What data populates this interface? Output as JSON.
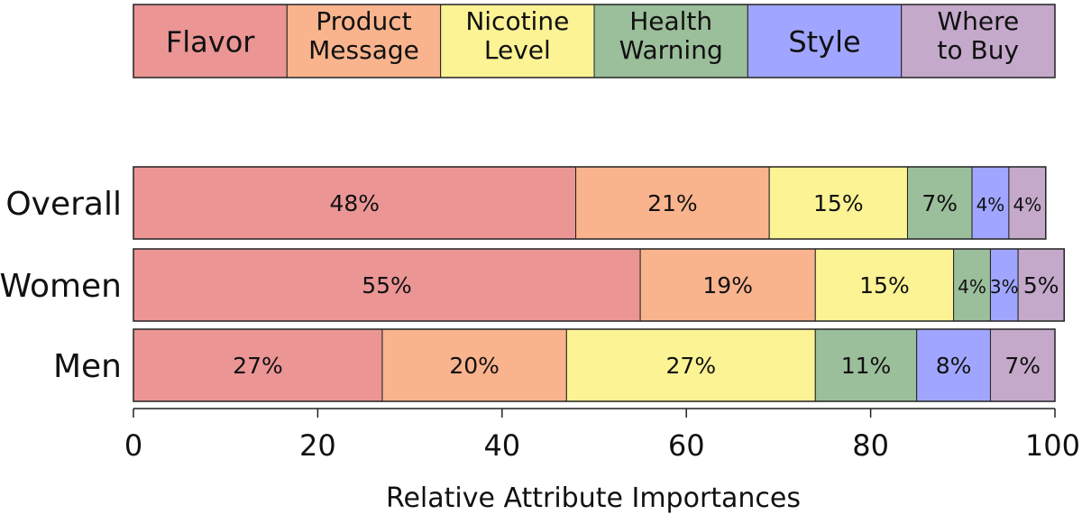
{
  "chart_data": {
    "type": "bar",
    "orientation": "horizontal",
    "stacked": true,
    "xlabel": "Relative Attribute Importances",
    "xlim": [
      0,
      100
    ],
    "xticks": [
      0,
      20,
      40,
      60,
      80,
      100
    ],
    "categories": [
      "Overall",
      "Women",
      "Men"
    ],
    "legend_position": "top",
    "series": [
      {
        "name": "Flavor",
        "legend_lines": [
          "Flavor"
        ],
        "color": "#EB9595",
        "values": [
          48,
          55,
          27
        ],
        "labels": [
          "48%",
          "55%",
          "27%"
        ]
      },
      {
        "name": "Product Message",
        "legend_lines": [
          "Product",
          "Message"
        ],
        "color": "#F9B48E",
        "values": [
          21,
          19,
          20
        ],
        "labels": [
          "21%",
          "19%",
          "20%"
        ]
      },
      {
        "name": "Nicotine Level",
        "legend_lines": [
          "Nicotine",
          "Level"
        ],
        "color": "#FBF394",
        "values": [
          15,
          15,
          27
        ],
        "labels": [
          "15%",
          "15%",
          "27%"
        ]
      },
      {
        "name": "Health Warning",
        "legend_lines": [
          "Health",
          "Warning"
        ],
        "color": "#9BBE9B",
        "values": [
          7,
          4,
          11
        ],
        "labels": [
          "7%",
          "4%",
          "11%"
        ]
      },
      {
        "name": "Style",
        "legend_lines": [
          "Style"
        ],
        "color": "#A0A6FF",
        "values": [
          4,
          3,
          8
        ],
        "labels": [
          "4%",
          "3%",
          "8%"
        ]
      },
      {
        "name": "Where to Buy",
        "legend_lines": [
          "Where",
          "to Buy"
        ],
        "color": "#C4A9CB",
        "values": [
          4,
          5,
          7
        ],
        "labels": [
          "4%",
          "5%",
          "7%"
        ]
      }
    ]
  }
}
